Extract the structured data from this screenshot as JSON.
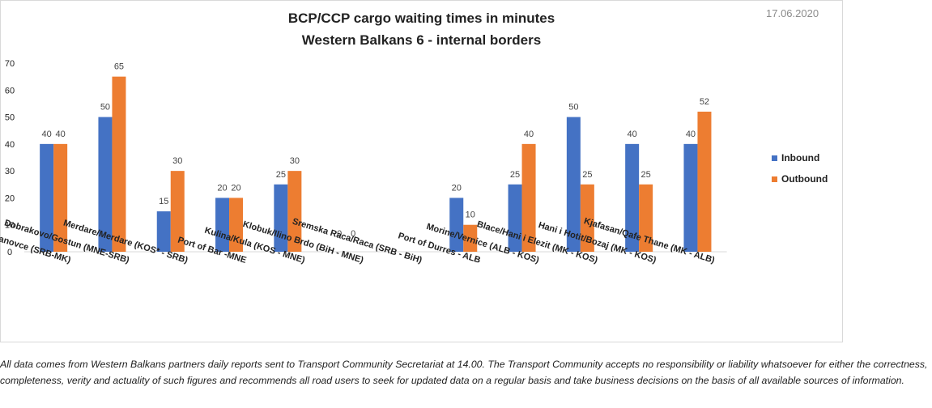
{
  "date": "17.06.2020",
  "disclaimer": "All data comes from Western Balkans partners daily reports sent to Transport Community Secretariat at 14.00. The Transport Community accepts no responsibility or liability whatsoever for either the correctness, completeness, verity and actuality of such figures and recommends all road users to seek for updated data on a regular basis and take business decisions on the basis of all available sources of information.",
  "chart_data": {
    "type": "bar",
    "title": "BCP/CCP cargo waiting times in minutes",
    "subtitle": "Western Balkans 6 - internal borders",
    "xlabel": "",
    "ylabel": "",
    "ylim": [
      0,
      70
    ],
    "yticks": [
      0,
      10,
      20,
      30,
      40,
      50,
      60,
      70
    ],
    "grid": false,
    "legend_position": "right",
    "categories": [
      "Presevo/ Tabanovce (SRB-MK)",
      "Dobrakovo/Gostun (MNE-SRB)",
      "Merdare/Merdare (KOS* - SRB)",
      "Port of Bar -MNE",
      "Kulina/Kula (KOS - MNE)",
      "Klobuk/Ilino Brdo (BiH - MNE)",
      "Sremska Raca/Raca (SRB - BiH)",
      "Port of Durres - ALB",
      "Morine/Vernice (ALB - KOS)",
      "Blace/Hani i Elezit (MK - KOS)",
      "Hani i Hotit/Bozaj (MK - KOS)",
      "Kjafasan/Qafe Thane (MK - ALB)"
    ],
    "series": [
      {
        "name": "Inbound",
        "color": "#4472c4",
        "values": [
          40,
          50,
          15,
          20,
          25,
          0,
          null,
          20,
          25,
          50,
          40,
          40
        ],
        "labels": [
          "40",
          "50",
          "15",
          "20",
          "25",
          "0",
          "",
          "20",
          "25",
          "50",
          "40",
          "40"
        ]
      },
      {
        "name": "Outbound",
        "color": "#ed7d31",
        "values": [
          40,
          65,
          30,
          20,
          30,
          0,
          null,
          10,
          40,
          25,
          25,
          52
        ],
        "labels": [
          "40",
          "65",
          "30",
          "20",
          "30",
          "0",
          "",
          "10",
          "40",
          "25",
          "25",
          "52"
        ]
      }
    ]
  }
}
